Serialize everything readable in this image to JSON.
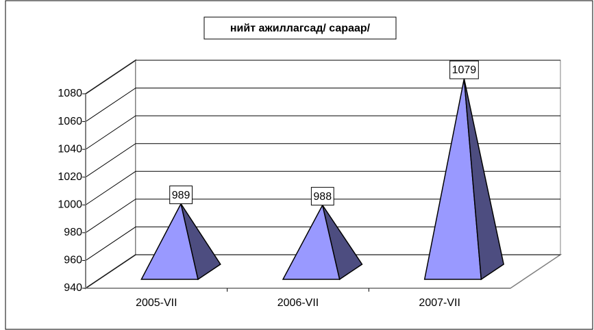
{
  "chart_data": {
    "type": "pyramid3d",
    "title": "нийт ажиллагсад/ сараар/",
    "categories": [
      "2005-VII",
      "2006-VII",
      "2007-VII"
    ],
    "values": [
      989,
      988,
      1079
    ],
    "color": "#9999ff",
    "ylim": [
      940,
      1080
    ],
    "yticks": [
      940,
      960,
      980,
      1000,
      1020,
      1040,
      1060,
      1080
    ],
    "grid": true
  }
}
